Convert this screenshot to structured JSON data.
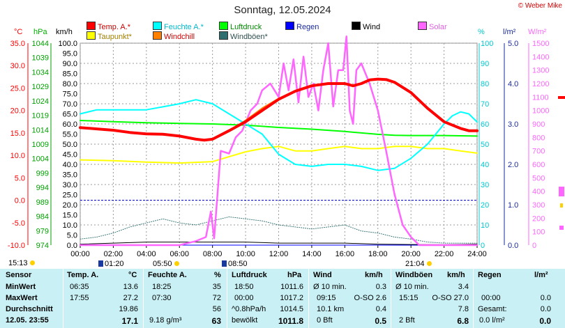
{
  "header": {
    "title": "Sonntag, 12.05.2024",
    "copyright": "© Weber Mike"
  },
  "legend": [
    {
      "label": "Temp. A.*",
      "color": "#ff0000"
    },
    {
      "label": "Feuchte A.*",
      "color": "#00ffff"
    },
    {
      "label": "Luftdruck",
      "color": "#00ff00"
    },
    {
      "label": "Regen",
      "color": "#0000ff"
    },
    {
      "label": "Wind",
      "color": "#000000"
    },
    {
      "label": "Solar",
      "color": "#ff66ff"
    },
    {
      "label": "Taupunkt*",
      "color": "#ffff00"
    },
    {
      "label": "Windchill",
      "color": "#ff8000"
    },
    {
      "label": "Windböen*",
      "color": "#2f6f6f"
    }
  ],
  "units": {
    "temp": "°C",
    "pressure": "hPa",
    "wind": "km/h",
    "humidity": "%",
    "rain": "l/m²",
    "solar": "W/m²"
  },
  "axes": {
    "temp_ticks": [
      "35.0",
      "30.0",
      "25.0",
      "20.0",
      "15.0",
      "10.0",
      "5.0",
      "0.0",
      "-5.0",
      "-10.0"
    ],
    "pressure_ticks": [
      "1044",
      "1039",
      "1034",
      "1029",
      "1024",
      "1019",
      "1014",
      "1009",
      "1004",
      "999",
      "994",
      "989",
      "984",
      "979",
      "974"
    ],
    "wind_ticks": [
      "100.0",
      "95.0",
      "90.0",
      "85.0",
      "80.0",
      "75.0",
      "70.0",
      "65.0",
      "60.0",
      "55.0",
      "50.0",
      "45.0",
      "40.0",
      "35.0",
      "30.0",
      "25.0",
      "20.0",
      "15.0",
      "10.0",
      "5.0",
      "0.0"
    ],
    "humidity_ticks": [
      "100",
      "90",
      "80",
      "70",
      "60",
      "50",
      "40",
      "30",
      "20",
      "10",
      "0"
    ],
    "rain_ticks": [
      "5.0",
      "4.0",
      "3.0",
      "2.0",
      "1.0",
      "0.0"
    ],
    "solar_ticks": [
      "1500",
      "1400",
      "1300",
      "1200",
      "1100",
      "1000",
      "900",
      "800",
      "700",
      "600",
      "500",
      "400",
      "300",
      "200",
      "100",
      "0"
    ],
    "time_ticks": [
      "00:00",
      "02:00",
      "04:00",
      "06:00",
      "08:00",
      "10:00",
      "12:00",
      "14:00",
      "16:00",
      "18:00",
      "20:00",
      "22:00",
      "24:00"
    ]
  },
  "chart_data": {
    "type": "line",
    "x_unit": "hours",
    "xlim": [
      0,
      24
    ],
    "series": [
      {
        "name": "Temp. A.*",
        "color": "#ff0000",
        "axis": "temp",
        "x": [
          0,
          1,
          2,
          3,
          4,
          5,
          6,
          7,
          7.5,
          8,
          9,
          10,
          11,
          12,
          13,
          14,
          15,
          16,
          16.5,
          17,
          17.5,
          18,
          18.5,
          19,
          20,
          21,
          22,
          23,
          23.5,
          24
        ],
        "y": [
          16.2,
          15.9,
          15.6,
          15.1,
          14.8,
          14.7,
          14.3,
          13.6,
          13.4,
          13.6,
          15.5,
          17.5,
          20,
          22.5,
          24.3,
          25.5,
          26,
          26,
          25.5,
          26,
          26.8,
          27,
          26.9,
          26.3,
          24,
          20.5,
          17.5,
          16,
          15.5,
          15.5
        ]
      },
      {
        "name": "Windchill",
        "color": "#ff8000",
        "axis": "temp",
        "x": [
          0,
          1,
          2,
          3,
          4,
          5,
          6,
          7,
          7.5,
          8,
          9,
          10,
          11,
          12,
          13,
          14,
          15,
          16,
          16.5,
          17,
          17.5,
          18,
          18.5,
          19,
          20,
          21,
          22,
          23,
          23.5,
          24
        ],
        "y": [
          16.2,
          15.9,
          15.6,
          15.1,
          14.8,
          14.7,
          14.3,
          13.6,
          13.4,
          13.6,
          15.5,
          17.8,
          20.5,
          22.7,
          24.3,
          25.5,
          26,
          26,
          25.5,
          26,
          26.8,
          27,
          26.9,
          26.3,
          24,
          20.5,
          17.5,
          16,
          15.5,
          15.5
        ]
      },
      {
        "name": "Taupunkt*",
        "color": "#ffff00",
        "axis": "temp",
        "x": [
          0,
          2,
          4,
          6,
          8,
          10,
          11,
          12,
          13,
          14,
          15,
          16,
          17,
          18,
          19,
          20,
          21,
          22,
          23,
          24
        ],
        "y": [
          9,
          8.8,
          8.5,
          8.3,
          8.6,
          10.8,
          11.5,
          12,
          11,
          11,
          11.5,
          12,
          11.5,
          11.5,
          12,
          12,
          11.5,
          11.5,
          11,
          10.5
        ]
      },
      {
        "name": "Feuchte A.*",
        "color": "#00ffff",
        "axis": "humidity",
        "x": [
          0,
          1,
          2,
          4,
          6,
          7,
          8,
          9,
          10,
          11,
          12,
          13,
          14,
          15,
          16,
          17,
          18,
          19,
          20,
          21,
          22,
          22.5,
          23,
          23.5,
          24
        ],
        "y": [
          65,
          67,
          67,
          67,
          70,
          72,
          70,
          65,
          60,
          55,
          45,
          40,
          39,
          40,
          40,
          39,
          37,
          38,
          43,
          50,
          60,
          64,
          66,
          65,
          61
        ]
      },
      {
        "name": "Luftdruck",
        "color": "#00ff00",
        "axis": "pressure",
        "x": [
          0,
          2,
          4,
          6,
          8,
          10,
          12,
          14,
          16,
          18,
          19,
          20,
          22,
          24
        ],
        "y": [
          1017.2,
          1016.8,
          1016.4,
          1016.2,
          1016,
          1015.6,
          1014.8,
          1014.2,
          1013.4,
          1012.4,
          1012.1,
          1012,
          1012,
          1011.8
        ]
      },
      {
        "name": "Solar",
        "color": "#ff66ff",
        "axis": "solar",
        "x": [
          0,
          6,
          7,
          7.6,
          7.9,
          8.1,
          8.5,
          9,
          9.4,
          9.8,
          10.3,
          10.7,
          11,
          11.5,
          12,
          12.3,
          12.6,
          12.9,
          13.2,
          13.5,
          13.8,
          14.1,
          14.4,
          14.7,
          15,
          15.3,
          15.6,
          15.9,
          16.1,
          16.3,
          16.5,
          16.7,
          17,
          17.5,
          18,
          18.5,
          19,
          19.5,
          20,
          20.5,
          24
        ],
        "y": [
          0,
          0,
          30,
          60,
          250,
          50,
          700,
          680,
          800,
          850,
          1000,
          1050,
          1150,
          1200,
          1100,
          1350,
          1150,
          1380,
          1060,
          1400,
          1100,
          1200,
          1000,
          1300,
          1500,
          1030,
          1300,
          1300,
          1550,
          1000,
          900,
          1300,
          1350,
          1200,
          1000,
          700,
          380,
          150,
          60,
          0,
          0
        ]
      },
      {
        "name": "Windböen*",
        "color": "#2f6f6f",
        "axis": "wind",
        "x": [
          0,
          1,
          2,
          3,
          4,
          5,
          6,
          7,
          8,
          9,
          10,
          11,
          12,
          13,
          14,
          15,
          16,
          17,
          18,
          19,
          20,
          21,
          22,
          23,
          24
        ],
        "y": [
          3,
          4,
          6,
          9,
          11,
          13,
          11,
          10,
          12,
          14,
          13,
          12,
          10,
          9,
          8,
          9,
          10,
          7,
          6,
          4,
          3,
          1.5,
          1,
          1,
          1
        ]
      },
      {
        "name": "Wind",
        "color": "#000000",
        "axis": "wind",
        "x": [
          0,
          2,
          4,
          6,
          8,
          10,
          12,
          14,
          16,
          18,
          20,
          22,
          24
        ],
        "y": [
          0.5,
          1,
          1.5,
          1.5,
          1.5,
          1.5,
          1,
          1,
          1,
          0.5,
          0.3,
          0.2,
          0.5
        ]
      },
      {
        "name": "Regen",
        "color": "#0000ff",
        "axis": "rain",
        "x": [
          0,
          24
        ],
        "y": [
          0,
          0
        ]
      }
    ],
    "axis_ranges": {
      "temp": [
        -10,
        35
      ],
      "pressure": [
        974,
        1044
      ],
      "wind": [
        0,
        100
      ],
      "humidity": [
        0,
        100
      ],
      "rain": [
        0,
        5
      ],
      "solar": [
        0,
        1500
      ]
    },
    "grid": true
  },
  "astro": {
    "sunrise": "05:50",
    "sunset": "21:04",
    "moonrise": "08:50",
    "moonset": "01:20",
    "current_time": "15:13"
  },
  "table": {
    "headers": [
      "Sensor",
      "Temp. A.",
      "°C",
      "Feuchte A.",
      "%",
      "Luftdruck",
      "hPa",
      "Wind",
      "km/h",
      "Windböen",
      "km/h",
      "Regen",
      "l/m²"
    ],
    "rows": [
      {
        "label": "MinWert",
        "c": [
          "06:35",
          "13.6",
          "18:25",
          "35",
          "18:50",
          "1011.6",
          "Ø 10 min.",
          "0.3",
          "Ø 10 min.",
          "3.4",
          "",
          ""
        ]
      },
      {
        "label": "MaxWert",
        "c": [
          "17:55",
          "27.2",
          "07:30",
          "72",
          "00:00",
          "1017.2",
          "09:15",
          "O-SO 2.6",
          "15:15",
          "O-SO 27.0",
          "00:00",
          "0.0"
        ]
      },
      {
        "label": "Durchschnitt",
        "c": [
          "",
          "19.86",
          "",
          "56",
          "^0.8hPa/h",
          "1014.5",
          "10.1 km",
          "0.4",
          "",
          "7.8",
          "Gesamt:",
          "0.0"
        ]
      },
      {
        "label": "12.05. 23:55",
        "c": [
          "",
          "17.1",
          "9.18 g/m³",
          "63",
          "bewölkt",
          "1011.8",
          "0 Bft",
          "0.5",
          "2 Bft",
          "6.8",
          "0.0 l/m²",
          "0.0"
        ]
      }
    ]
  }
}
